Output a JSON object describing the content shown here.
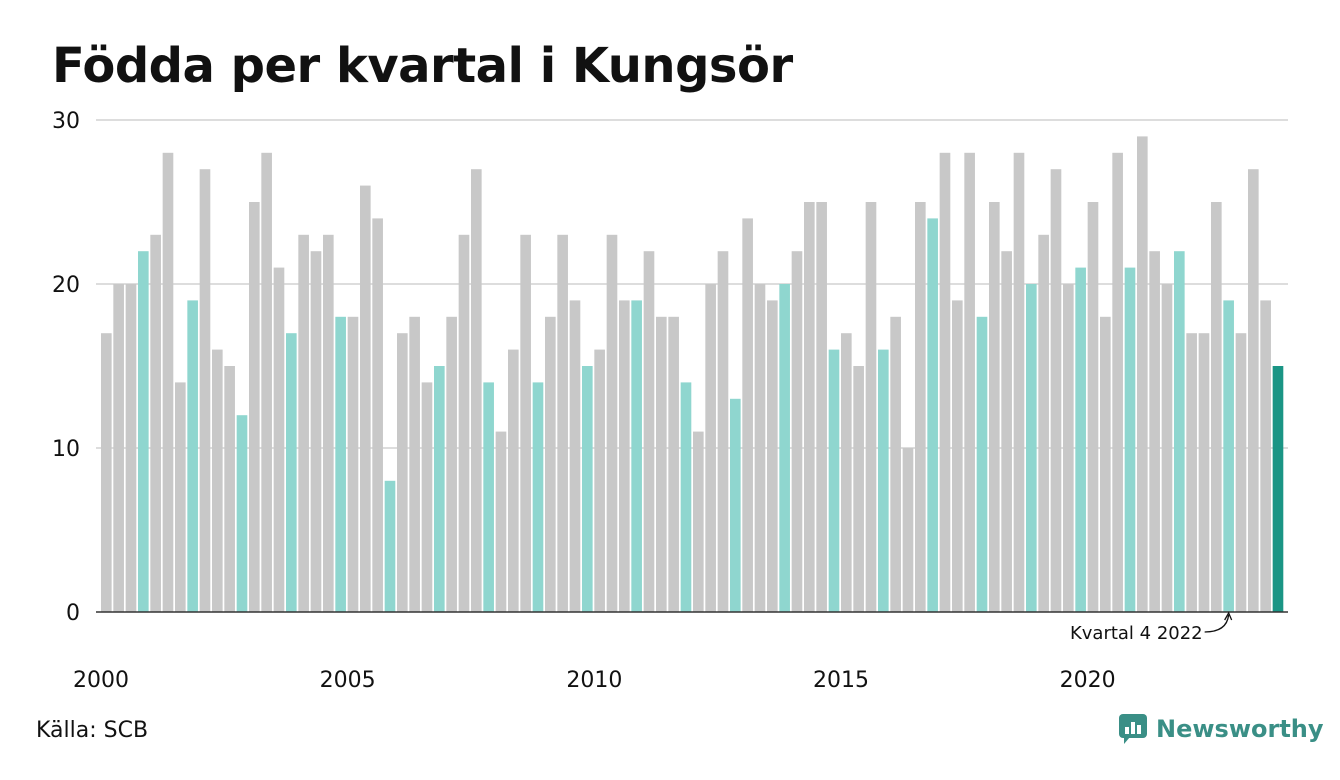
{
  "title": "Födda per kvartal i Kungsör",
  "source": "Källa: SCB",
  "brand": "Newsworthy",
  "colors": {
    "bar_default": "#c8c8c8",
    "bar_q4": "#8fd6cf",
    "bar_latest": "#1a9585",
    "grid": "#dddddd",
    "brand": "#3a8f86"
  },
  "chart_data": {
    "type": "bar",
    "ylim": [
      0,
      30
    ],
    "yticks": [
      0,
      10,
      20,
      30
    ],
    "xtick_labels": [
      "2000",
      "2005",
      "2010",
      "2015",
      "2020"
    ],
    "annotation": "Kvartal 4 2022",
    "values": [
      17,
      20,
      20,
      22,
      23,
      28,
      14,
      19,
      27,
      16,
      15,
      12,
      25,
      28,
      21,
      17,
      23,
      22,
      23,
      18,
      18,
      26,
      24,
      8,
      17,
      18,
      14,
      15,
      18,
      23,
      27,
      14,
      11,
      16,
      23,
      14,
      18,
      23,
      19,
      15,
      16,
      23,
      19,
      19,
      22,
      18,
      18,
      14,
      11,
      20,
      22,
      13,
      24,
      20,
      19,
      20,
      22,
      25,
      25,
      16,
      17,
      15,
      25,
      16,
      18,
      10,
      25,
      24,
      28,
      19,
      28,
      18,
      25,
      22,
      28,
      20,
      23,
      27,
      20,
      21,
      25,
      18,
      28,
      21,
      29,
      22,
      20,
      22,
      17,
      17,
      25,
      19,
      17,
      27,
      19,
      15
    ]
  }
}
